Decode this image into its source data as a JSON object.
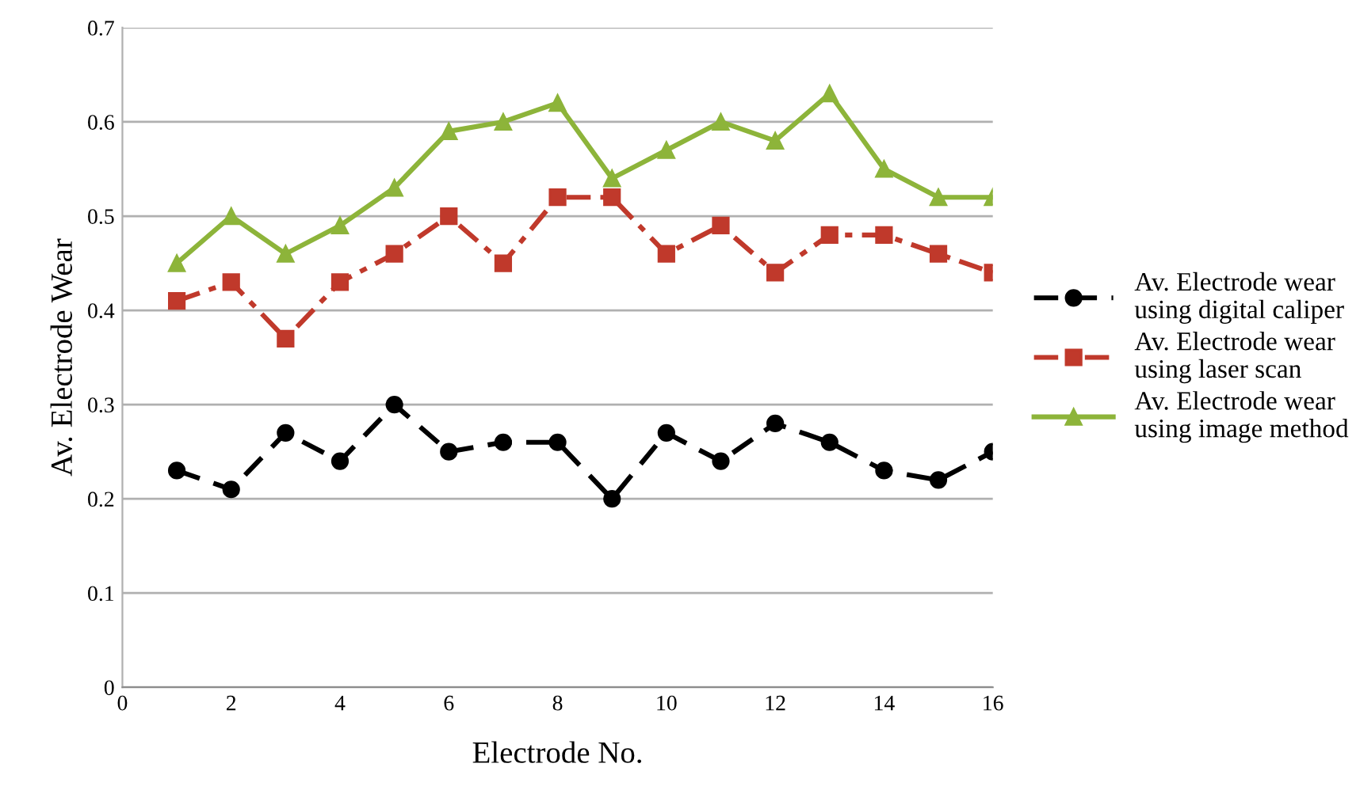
{
  "chart_data": {
    "type": "line",
    "xlabel": "Electrode No.",
    "ylabel": "Av. Electrode Wear",
    "x": [
      1,
      2,
      3,
      4,
      5,
      6,
      7,
      8,
      9,
      10,
      11,
      12,
      13,
      14,
      15,
      16
    ],
    "xlim": [
      0,
      16
    ],
    "xticks": [
      0,
      2,
      4,
      6,
      8,
      10,
      12,
      14,
      16
    ],
    "ylim": [
      0,
      0.7
    ],
    "yticks": [
      0,
      0.1,
      0.2,
      0.3,
      0.4,
      0.5,
      0.6,
      0.7
    ],
    "grid": "y",
    "legend": "right",
    "series": [
      {
        "name": "Av. Electrode wear\nusing digital caliper",
        "color": "#000000",
        "marker": "circle",
        "line_style": "dashed",
        "values": [
          0.23,
          0.21,
          0.27,
          0.24,
          0.3,
          0.25,
          0.26,
          0.26,
          0.2,
          0.27,
          0.24,
          0.28,
          0.26,
          0.23,
          0.22,
          0.25
        ]
      },
      {
        "name": "Av. Electrode wear\nusing laser scan",
        "color": "#c0392b",
        "marker": "square",
        "line_style": "dashdot",
        "values": [
          0.41,
          0.43,
          0.37,
          0.43,
          0.46,
          0.5,
          0.45,
          0.52,
          0.52,
          0.46,
          0.49,
          0.44,
          0.48,
          0.48,
          0.46,
          0.44
        ]
      },
      {
        "name": "Av. Electrode wear\nusing image method",
        "color": "#8db43a",
        "marker": "triangle",
        "line_style": "solid",
        "values": [
          0.45,
          0.5,
          0.46,
          0.49,
          0.53,
          0.59,
          0.6,
          0.62,
          0.54,
          0.57,
          0.6,
          0.58,
          0.63,
          0.55,
          0.52,
          0.52
        ]
      }
    ]
  }
}
